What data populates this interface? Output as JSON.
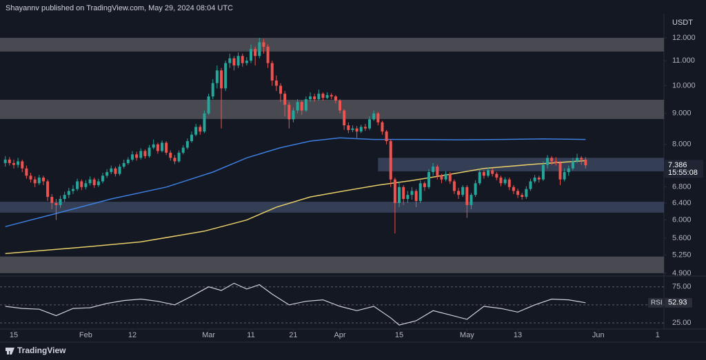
{
  "header": "Shayannv published on TradingView.com, May 29, 2024 08:04 UTC",
  "footer": "TradingView",
  "chart_data": {
    "type": "candlestick",
    "currency": "USDT",
    "log_scale": true,
    "up_color": "#26a69a",
    "down_color": "#ef5350",
    "x": [
      13,
      14,
      15,
      16,
      17,
      18,
      19,
      20,
      21,
      22,
      23,
      24,
      25,
      26,
      27,
      28,
      29,
      30,
      31,
      32,
      33,
      34,
      35,
      36,
      37,
      38,
      39,
      40,
      41,
      42,
      43,
      44,
      45,
      46,
      47,
      48,
      49,
      50,
      51,
      52,
      53,
      54,
      55,
      56,
      57,
      58,
      59,
      60,
      61,
      62,
      63,
      64,
      65,
      66,
      67,
      68,
      69,
      70,
      71,
      72,
      73,
      74,
      75,
      76,
      77,
      78,
      79,
      80,
      81,
      82,
      83,
      84,
      85,
      86,
      87,
      88,
      89,
      90,
      91,
      92,
      93,
      94,
      95,
      96,
      97,
      98,
      99,
      100,
      101,
      102,
      103,
      104,
      105,
      106,
      107,
      108,
      109,
      110,
      111,
      112,
      113,
      114,
      115,
      116,
      117,
      118,
      119,
      120,
      121,
      122,
      123,
      124,
      125,
      126,
      127,
      128,
      129,
      130,
      131,
      132,
      133,
      134,
      135,
      136,
      137,
      138,
      139,
      140,
      141,
      142,
      143,
      144,
      145,
      146,
      147,
      148,
      149,
      150
    ],
    "open": [
      7.45,
      7.55,
      7.45,
      7.4,
      7.5,
      7.3,
      7.1,
      7,
      6.9,
      7.05,
      6.95,
      6.55,
      6.4,
      6.35,
      6.5,
      6.6,
      6.7,
      6.75,
      6.95,
      6.8,
      6.9,
      7,
      6.85,
      6.95,
      7.1,
      7.2,
      7.3,
      7.15,
      7.35,
      7.45,
      7.55,
      7.7,
      7.6,
      7.8,
      7.65,
      7.9,
      8,
      7.8,
      8.05,
      7.75,
      7.6,
      7.5,
      7.75,
      7.9,
      8.1,
      8.3,
      8.55,
      8.4,
      9,
      9.6,
      10.1,
      10.6,
      9.9,
      10.9,
      11.1,
      10.8,
      11.2,
      10.9,
      11,
      11.5,
      11.2,
      11.8,
      11.6,
      10.9,
      10.2,
      10,
      9.7,
      9.3,
      8.8,
      9.1,
      9.4,
      9.1,
      9.5,
      9.6,
      9.5,
      9.7,
      9.55,
      9.65,
      9.6,
      9.45,
      9.1,
      8.6,
      8.45,
      8.5,
      8.4,
      8.55,
      8.5,
      8.8,
      9,
      8.7,
      8.4,
      8.1,
      7,
      6.4,
      6.8,
      6.5,
      6.6,
      6.7,
      6.45,
      6.9,
      6.8,
      7.2,
      7.35,
      7.1,
      7,
      7.15,
      6.95,
      6.7,
      6.6,
      6.8,
      6.35,
      6.6,
      6.9,
      7.2,
      7.1,
      7.25,
      7.15,
      7.05,
      6.9,
      7,
      6.8,
      6.7,
      6.6,
      6.55,
      6.75,
      6.95,
      7.05,
      7,
      7.4,
      7.6,
      7.5,
      7.45,
      7,
      7.2,
      7.3,
      7.5,
      7.6,
      7.55
    ],
    "high": [
      7.65,
      7.62,
      7.55,
      7.6,
      7.55,
      7.38,
      7.18,
      7.08,
      7.12,
      7.1,
      7,
      6.62,
      6.5,
      6.58,
      6.68,
      6.78,
      6.85,
      7.02,
      7,
      6.98,
      7.08,
      7.05,
      7.02,
      7.18,
      7.28,
      7.38,
      7.35,
      7.42,
      7.55,
      7.62,
      7.8,
      7.78,
      7.88,
      7.85,
      7.98,
      8.15,
      8.05,
      8.12,
      8.1,
      7.82,
      7.68,
      7.82,
      7.98,
      8.18,
      8.4,
      8.65,
      8.62,
      9.1,
      9.7,
      10.25,
      10.8,
      10.7,
      11,
      11.3,
      11.2,
      11.35,
      11.3,
      11.15,
      11.7,
      11.6,
      12,
      11.95,
      11.7,
      11,
      10.4,
      10.1,
      9.8,
      9.4,
      9.2,
      9.5,
      9.45,
      9.6,
      9.75,
      9.7,
      9.85,
      9.75,
      9.75,
      9.72,
      9.65,
      9.5,
      9.15,
      8.7,
      8.6,
      8.58,
      8.62,
      8.65,
      8.9,
      9.1,
      9.05,
      8.75,
      8.45,
      8.15,
      7.05,
      6.95,
      6.85,
      6.7,
      6.8,
      6.75,
      6.98,
      6.95,
      7.28,
      7.45,
      7.4,
      7.15,
      7.22,
      7.2,
      7,
      6.78,
      6.85,
      6.85,
      6.65,
      6.98,
      7.28,
      7.25,
      7.32,
      7.3,
      7.2,
      7.1,
      7.06,
      7.05,
      6.85,
      6.76,
      6.65,
      6.82,
      7.02,
      7.12,
      7.1,
      7.5,
      7.68,
      7.65,
      7.62,
      7.5,
      7.3,
      7.38,
      7.6,
      7.72,
      7.65,
      7.62
    ],
    "low": [
      7.35,
      7.38,
      7.3,
      7.32,
      7.2,
      7.02,
      6.92,
      6.8,
      6.85,
      6.85,
      6.45,
      6.25,
      6,
      6.28,
      6.42,
      6.52,
      6.62,
      6.7,
      6.72,
      6.74,
      6.84,
      6.78,
      6.8,
      6.9,
      7.04,
      7.14,
      7.08,
      7.1,
      7.3,
      7.4,
      7.5,
      7.52,
      7.55,
      7.58,
      7.6,
      7.85,
      7.72,
      7.76,
      7.68,
      7.52,
      7.42,
      7.46,
      7.7,
      7.85,
      8.05,
      8.25,
      8.3,
      8.35,
      8.95,
      9.5,
      9.9,
      8.5,
      9.8,
      10.7,
      10.6,
      10.7,
      10.75,
      10.8,
      10.9,
      10.8,
      11.1,
      11.3,
      10.7,
      10,
      9.8,
      9.4,
      8.9,
      8.5,
      8.7,
      9,
      8.95,
      9.05,
      9.4,
      9.4,
      9.45,
      9.45,
      9.5,
      9.5,
      9.35,
      9,
      8.45,
      8.35,
      8.38,
      8.2,
      8.35,
      8.42,
      8.45,
      8.75,
      8.6,
      8.3,
      8,
      6.8,
      5.7,
      6.3,
      6.35,
      6.4,
      6.48,
      6.3,
      6.4,
      6.7,
      6.75,
      7.1,
      7,
      6.9,
      6.95,
      6.88,
      6.62,
      6.5,
      6.55,
      6.05,
      6.25,
      6.55,
      6.85,
      7.02,
      7.05,
      7.08,
      6.98,
      6.82,
      6.85,
      6.72,
      6.62,
      6.52,
      6.48,
      6.5,
      6.7,
      6.9,
      6.92,
      6.96,
      7.3,
      7.4,
      7.38,
      6.85,
      6.95,
      7.1,
      7.25,
      7.45,
      7.4,
      7.3
    ],
    "close": [
      7.55,
      7.45,
      7.4,
      7.5,
      7.3,
      7.1,
      7,
      6.9,
      7.05,
      6.95,
      6.55,
      6.4,
      6.35,
      6.5,
      6.6,
      6.7,
      6.75,
      6.95,
      6.8,
      6.9,
      7,
      6.85,
      6.95,
      7.1,
      7.2,
      7.3,
      7.15,
      7.35,
      7.45,
      7.55,
      7.7,
      7.6,
      7.8,
      7.65,
      7.9,
      8,
      7.8,
      8.05,
      7.75,
      7.6,
      7.5,
      7.75,
      7.9,
      8.1,
      8.3,
      8.55,
      8.4,
      9,
      9.6,
      10.1,
      10.6,
      9.9,
      10.9,
      11.1,
      10.8,
      11.2,
      10.9,
      11,
      11.5,
      11.2,
      11.8,
      11.6,
      10.9,
      10.2,
      10,
      9.7,
      9.3,
      8.8,
      9.1,
      9.4,
      9.1,
      9.5,
      9.6,
      9.5,
      9.7,
      9.55,
      9.65,
      9.6,
      9.45,
      9.1,
      8.6,
      8.45,
      8.5,
      8.4,
      8.55,
      8.5,
      8.8,
      9,
      8.7,
      8.4,
      8.1,
      7,
      6.4,
      6.8,
      6.5,
      6.6,
      6.7,
      6.45,
      6.9,
      6.8,
      7.2,
      7.35,
      7.1,
      7,
      7.15,
      6.95,
      6.7,
      6.6,
      6.8,
      6.35,
      6.6,
      6.9,
      7.2,
      7.1,
      7.25,
      7.15,
      7.05,
      6.9,
      7,
      6.8,
      6.7,
      6.6,
      6.55,
      6.75,
      6.95,
      7.05,
      7,
      7.4,
      7.6,
      7.5,
      7.45,
      7,
      7.2,
      7.3,
      7.5,
      7.6,
      7.55,
      7.386
    ],
    "countdown": "15:55:08",
    "xlim": [
      11.75,
      168.5
    ],
    "xticks": [
      {
        "value": 15,
        "label": "15"
      },
      {
        "value": 32,
        "label": "Feb"
      },
      {
        "value": 43,
        "label": "12"
      },
      {
        "value": 61,
        "label": "Mar"
      },
      {
        "value": 71,
        "label": "11"
      },
      {
        "value": 81,
        "label": "21"
      },
      {
        "value": 92,
        "label": "Apr"
      },
      {
        "value": 106,
        "label": "15"
      },
      {
        "value": 122,
        "label": "May"
      },
      {
        "value": 134,
        "label": "13"
      },
      {
        "value": 153,
        "label": "Jun"
      },
      {
        "value": 167,
        "label": "1"
      }
    ],
    "ylim": [
      4.86,
      13.15
    ],
    "yticks": [
      {
        "value": 12,
        "label": "12.000"
      },
      {
        "value": 11,
        "label": "11.000"
      },
      {
        "value": 10,
        "label": "10.000"
      },
      {
        "value": 9,
        "label": "9.000"
      },
      {
        "value": 8,
        "label": "8.000"
      },
      {
        "value": 6.8,
        "label": "6.800"
      },
      {
        "value": 6.4,
        "label": "6.400"
      },
      {
        "value": 6,
        "label": "6.000"
      },
      {
        "value": 5.6,
        "label": "5.600"
      },
      {
        "value": 5.25,
        "label": "5.250"
      },
      {
        "value": 4.9,
        "label": "4.900"
      }
    ],
    "series": [
      {
        "color": "#3d7fe0",
        "x": [
          13,
          25,
          38,
          51,
          62,
          70,
          78,
          85,
          92,
          100,
          110,
          120,
          130,
          140,
          150
        ],
        "values": [
          5.85,
          6.15,
          6.5,
          6.8,
          7.2,
          7.6,
          7.9,
          8.1,
          8.2,
          8.15,
          8.15,
          8.14,
          8.15,
          8.17,
          8.15
        ]
      },
      {
        "color": "#e8cf6a",
        "x": [
          13,
          30,
          45,
          60,
          70,
          77,
          85,
          93,
          101,
          109,
          117,
          126,
          138,
          150
        ],
        "values": [
          5.28,
          5.4,
          5.52,
          5.75,
          6,
          6.3,
          6.55,
          6.7,
          6.85,
          6.97,
          7.12,
          7.3,
          7.42,
          7.52
        ]
      }
    ],
    "zones": [
      {
        "low": 11.39,
        "high": 12,
        "color": "#55565c"
      },
      {
        "low": 8.81,
        "high": 9.48,
        "color": "#55565c"
      },
      {
        "low": 7.22,
        "high": 7.6,
        "color": "#3c4a63",
        "start": 101
      },
      {
        "low": 6.17,
        "high": 6.43,
        "color": "#3c4a63"
      },
      {
        "low": 4.9,
        "high": 5.22,
        "color": "#55565c"
      }
    ],
    "rsi": {
      "name": "RSI",
      "color": "#d1d4dc",
      "x": [
        13,
        17,
        21,
        25,
        29,
        33,
        37,
        41,
        45,
        49,
        53,
        57,
        61,
        64,
        67,
        70,
        73,
        76,
        80,
        84,
        88,
        92,
        96,
        100,
        104,
        106,
        110,
        114,
        118,
        122,
        126,
        130,
        134,
        138,
        142,
        146,
        150
      ],
      "values": [
        48,
        45,
        44,
        35,
        45,
        46,
        52,
        56,
        58,
        55,
        50,
        62,
        75,
        70,
        80,
        72,
        78,
        65,
        50,
        55,
        57,
        48,
        42,
        48,
        32,
        22,
        28,
        42,
        36,
        30,
        48,
        45,
        40,
        50,
        58,
        57,
        52.93
      ],
      "ylim": [
        16.5,
        90
      ],
      "yticks": [
        {
          "value": 25,
          "label": "25.00"
        },
        {
          "value": 75,
          "label": "75.00"
        }
      ],
      "midline": 50
    }
  }
}
